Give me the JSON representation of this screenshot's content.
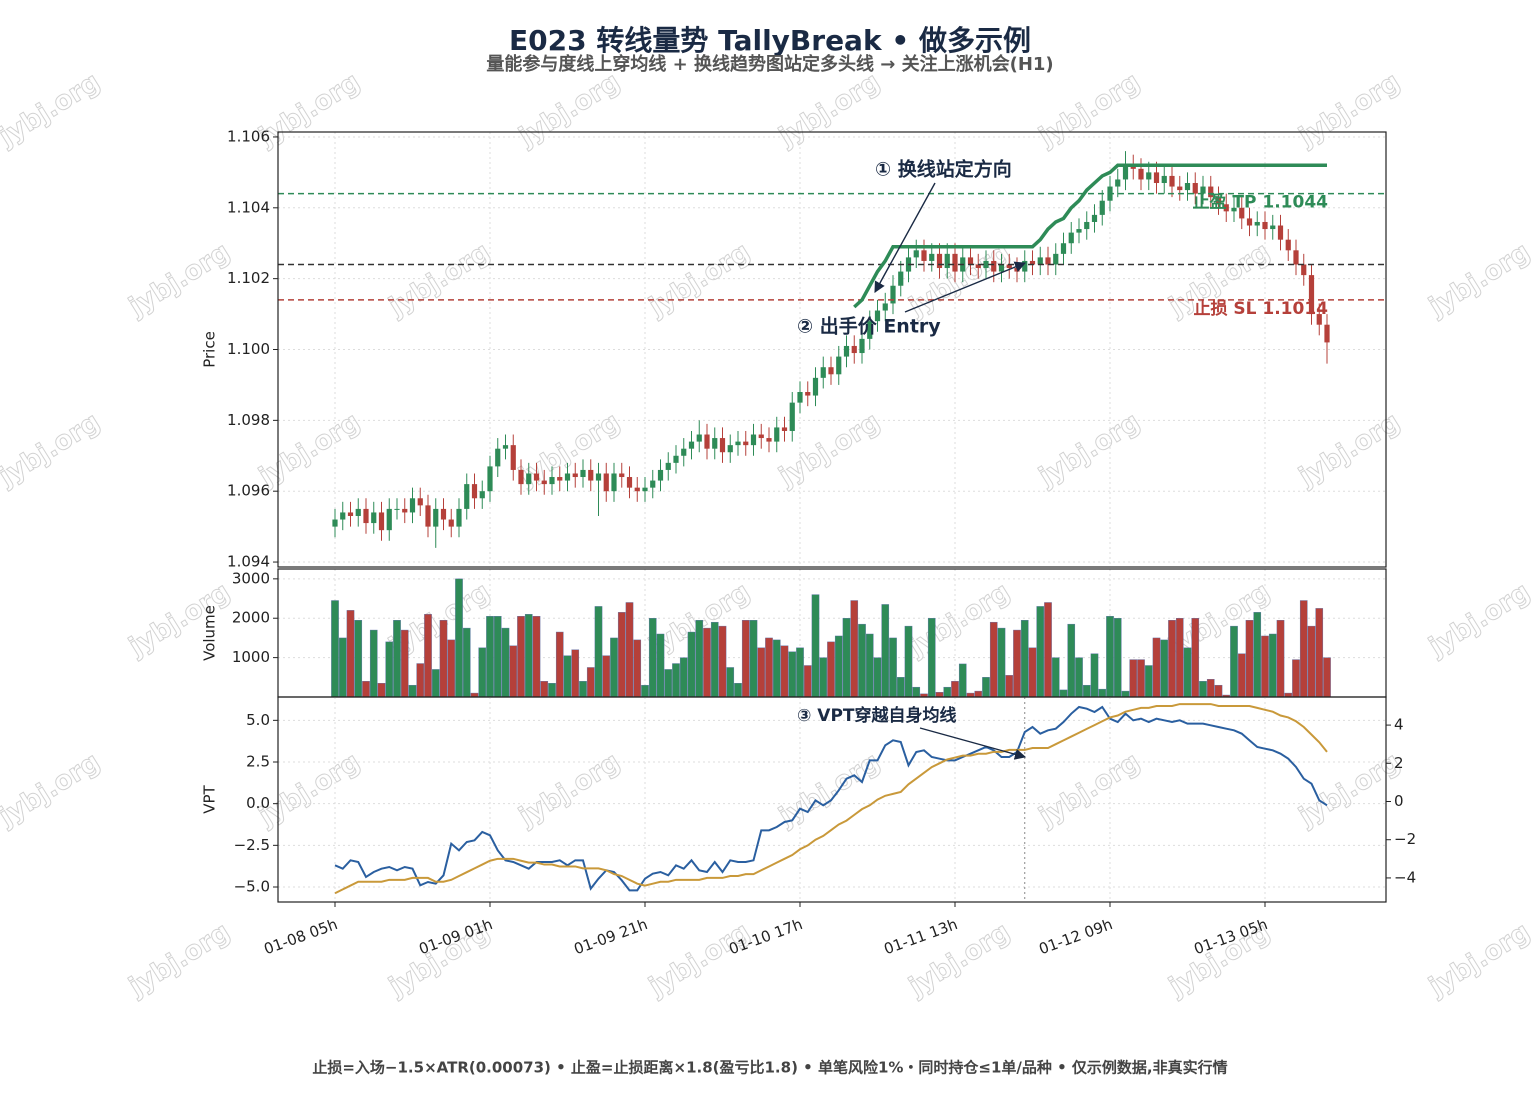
{
  "watermark": "jybj.org",
  "footer": "止损=入场−1.5×ATR(0.00073)  •  止盈=止损距离×1.8(盈亏比1.8)  •  单笔风险1%・同时持仓≤1单/品种  •  仅示例数据,非真实行情",
  "chart_data": [
    {
      "type": "candlestick",
      "title": "E023 转线量势 TallyBreak • 做多示例",
      "subtitle": "量能参与度线上穿均线 + 换线趋势图站定多头线 → 关注上涨机会(H1)",
      "ylabel": "Price",
      "grid": true,
      "up_color": "#2e8b57",
      "down_color": "#b5403a",
      "ylim": [
        1.09386,
        1.10614
      ],
      "yticks": [
        1.094,
        1.096,
        1.098,
        {
          "value": 1.1,
          "label": "1.100"
        },
        1.102,
        1.104,
        1.106
      ],
      "open": [
        1.095,
        1.0952,
        1.0954,
        1.0953,
        1.0955,
        1.0951,
        1.0954,
        1.0949,
        1.0955,
        1.0955,
        1.0954,
        1.0958,
        1.0956,
        1.095,
        1.0955,
        1.0952,
        1.095,
        1.0955,
        1.0962,
        1.0958,
        1.096,
        1.0967,
        1.0972,
        1.0973,
        1.0966,
        1.0962,
        1.0965,
        1.0963,
        1.0962,
        1.0964,
        1.0963,
        1.0965,
        1.0964,
        1.0966,
        1.0963,
        1.0965,
        1.096,
        1.0965,
        1.0964,
        1.0961,
        1.096,
        1.0961,
        1.0963,
        1.0966,
        1.0968,
        1.097,
        1.0972,
        1.0974,
        1.0976,
        1.0972,
        1.0975,
        1.0971,
        1.0973,
        1.0974,
        1.0973,
        1.0976,
        1.0975,
        1.0974,
        1.0978,
        1.0977,
        1.0985,
        1.0988,
        1.0987,
        1.0992,
        1.0995,
        1.0993,
        1.0998,
        1.1001,
        1.0999,
        1.1003,
        1.1008,
        1.1011,
        1.1013,
        1.1018,
        1.1022,
        1.1026,
        1.1028,
        1.1025,
        1.1027,
        1.1023,
        1.1027,
        1.1022,
        1.1026,
        1.1024,
        1.1023,
        1.1025,
        1.1022,
        1.1024,
        1.1023,
        1.1022,
        1.1025,
        1.1024,
        1.1026,
        1.1024,
        1.1027,
        1.103,
        1.1033,
        1.1034,
        1.1036,
        1.1038,
        1.1042,
        1.1046,
        1.1048,
        1.1052,
        1.1051,
        1.1048,
        1.105,
        1.1047,
        1.1049,
        1.1046,
        1.1045,
        1.1047,
        1.1044,
        1.1046,
        1.1043,
        1.1041,
        1.1039,
        1.104,
        1.1037,
        1.1035,
        1.1036,
        1.1034,
        1.1035,
        1.1031,
        1.1028,
        1.1024,
        1.1021,
        1.101,
        1.1007
      ],
      "high": [
        1.0955,
        1.0957,
        1.0957,
        1.0958,
        1.0958,
        1.0957,
        1.0957,
        1.0958,
        1.0958,
        1.0958,
        1.0961,
        1.0961,
        1.0959,
        1.0958,
        1.0958,
        1.0955,
        1.0958,
        1.0965,
        1.0965,
        1.0963,
        1.097,
        1.0975,
        1.0976,
        1.0976,
        1.0969,
        1.0968,
        1.0968,
        1.0966,
        1.0967,
        1.0967,
        1.0968,
        1.0968,
        1.0969,
        1.0969,
        1.0968,
        1.0968,
        1.0968,
        1.0968,
        1.0967,
        1.0964,
        1.0964,
        1.0966,
        1.0969,
        1.0971,
        1.0973,
        1.0975,
        1.0977,
        1.098,
        1.0979,
        1.0978,
        1.0978,
        1.0976,
        1.0977,
        1.0977,
        1.0979,
        1.0979,
        1.0978,
        1.0981,
        1.0981,
        1.0988,
        1.0991,
        1.0991,
        1.0995,
        1.0998,
        1.0998,
        1.1001,
        1.1004,
        1.1004,
        1.1006,
        1.1011,
        1.1014,
        1.1016,
        1.1021,
        1.1025,
        1.1029,
        1.1031,
        1.1031,
        1.103,
        1.103,
        1.103,
        1.103,
        1.1029,
        1.1029,
        1.1027,
        1.1028,
        1.1028,
        1.1027,
        1.1027,
        1.1026,
        1.1028,
        1.1028,
        1.1029,
        1.1029,
        1.103,
        1.1033,
        1.1036,
        1.1037,
        1.1039,
        1.1041,
        1.1045,
        1.1049,
        1.1051,
        1.1056,
        1.1055,
        1.1054,
        1.1053,
        1.1053,
        1.1052,
        1.1052,
        1.1049,
        1.105,
        1.105,
        1.1049,
        1.1049,
        1.1046,
        1.1044,
        1.1043,
        1.1043,
        1.104,
        1.1039,
        1.1039,
        1.1038,
        1.1038,
        1.1034,
        1.1031,
        1.1027,
        1.1024,
        1.1013,
        1.101
      ],
      "low": [
        1.0947,
        1.0949,
        1.095,
        1.095,
        1.0948,
        1.0948,
        1.0946,
        1.0946,
        1.0952,
        1.0951,
        1.0951,
        1.0953,
        1.0947,
        1.0944,
        1.0949,
        1.0947,
        1.0947,
        1.0952,
        1.0955,
        1.0955,
        1.0957,
        1.0964,
        1.0969,
        1.0963,
        1.0959,
        1.0959,
        1.096,
        1.0959,
        1.0959,
        1.096,
        1.096,
        1.0961,
        1.0961,
        1.096,
        1.0953,
        1.0957,
        1.0957,
        1.0961,
        1.0958,
        1.0957,
        1.0957,
        1.0958,
        1.096,
        1.0963,
        1.0965,
        1.0967,
        1.0969,
        1.0971,
        1.0969,
        1.0969,
        1.0968,
        1.0968,
        1.097,
        1.097,
        1.097,
        1.0972,
        1.0971,
        1.0971,
        1.0974,
        1.0974,
        1.0982,
        1.0984,
        1.0984,
        1.0989,
        1.099,
        1.099,
        1.0995,
        1.0996,
        1.0996,
        1.1,
        1.1005,
        1.1008,
        1.101,
        1.1015,
        1.1019,
        1.1023,
        1.1022,
        1.1022,
        1.102,
        1.102,
        1.1019,
        1.1019,
        1.1021,
        1.102,
        1.102,
        1.1019,
        1.1019,
        1.102,
        1.1019,
        1.1019,
        1.1021,
        1.1021,
        1.1021,
        1.1021,
        1.1024,
        1.1027,
        1.103,
        1.1031,
        1.1033,
        1.1035,
        1.1039,
        1.1043,
        1.1045,
        1.1048,
        1.1045,
        1.1045,
        1.1044,
        1.1044,
        1.1043,
        1.1042,
        1.1042,
        1.1041,
        1.1041,
        1.104,
        1.1038,
        1.1036,
        1.1036,
        1.1034,
        1.1032,
        1.1032,
        1.1031,
        1.1031,
        1.1028,
        1.1025,
        1.1021,
        1.1018,
        1.1007,
        1.1004,
        1.0996
      ],
      "close": [
        1.0952,
        1.0954,
        1.0953,
        1.0955,
        1.0951,
        1.0954,
        1.0949,
        1.0955,
        1.0955,
        1.0954,
        1.0958,
        1.0956,
        1.095,
        1.0955,
        1.0952,
        1.095,
        1.0955,
        1.0962,
        1.0958,
        1.096,
        1.0967,
        1.0972,
        1.0973,
        1.0966,
        1.0962,
        1.0965,
        1.0963,
        1.0962,
        1.0964,
        1.0963,
        1.0965,
        1.0964,
        1.0966,
        1.0963,
        1.0965,
        1.096,
        1.0965,
        1.0964,
        1.0961,
        1.096,
        1.0961,
        1.0963,
        1.0966,
        1.0968,
        1.097,
        1.0972,
        1.0974,
        1.0976,
        1.0972,
        1.0975,
        1.0971,
        1.0973,
        1.0974,
        1.0973,
        1.0976,
        1.0975,
        1.0974,
        1.0978,
        1.0977,
        1.0985,
        1.0988,
        1.0987,
        1.0992,
        1.0995,
        1.0993,
        1.0998,
        1.1001,
        1.0999,
        1.1003,
        1.1008,
        1.1011,
        1.1013,
        1.1018,
        1.1022,
        1.1026,
        1.1028,
        1.1025,
        1.1027,
        1.1023,
        1.1027,
        1.1022,
        1.1026,
        1.1024,
        1.1023,
        1.1025,
        1.1022,
        1.1024,
        1.1023,
        1.1022,
        1.1025,
        1.1024,
        1.1026,
        1.1024,
        1.1027,
        1.103,
        1.1033,
        1.1034,
        1.1036,
        1.1038,
        1.1042,
        1.1046,
        1.1048,
        1.1052,
        1.1051,
        1.1048,
        1.105,
        1.1047,
        1.1049,
        1.1046,
        1.1045,
        1.1047,
        1.1044,
        1.1046,
        1.1043,
        1.1041,
        1.1039,
        1.104,
        1.1037,
        1.1035,
        1.1036,
        1.1034,
        1.1035,
        1.1031,
        1.1028,
        1.1024,
        1.1021,
        1.101,
        1.1007,
        1.1002
      ],
      "trend_line": {
        "color": "#2e8b57",
        "values": [
          null,
          null,
          null,
          null,
          null,
          null,
          null,
          null,
          null,
          null,
          null,
          null,
          null,
          null,
          null,
          null,
          null,
          null,
          null,
          null,
          null,
          null,
          null,
          null,
          null,
          null,
          null,
          null,
          null,
          null,
          null,
          null,
          null,
          null,
          null,
          null,
          null,
          null,
          null,
          null,
          null,
          null,
          null,
          null,
          null,
          null,
          null,
          null,
          null,
          null,
          null,
          null,
          null,
          null,
          null,
          null,
          null,
          null,
          null,
          null,
          null,
          null,
          null,
          null,
          null,
          null,
          null,
          1.1012,
          1.1014,
          1.1018,
          1.1022,
          1.1025,
          1.1029,
          1.1029,
          1.1029,
          1.1029,
          1.1029,
          1.1029,
          1.1029,
          1.1029,
          1.1029,
          1.1029,
          1.1029,
          1.1029,
          1.1029,
          1.1029,
          1.1029,
          1.1029,
          1.1029,
          1.1029,
          1.1029,
          1.1031,
          1.1034,
          1.1036,
          1.1037,
          1.104,
          1.1042,
          1.1045,
          1.1047,
          1.1049,
          1.105,
          1.1052,
          1.1052,
          1.1052,
          1.1052,
          1.1052,
          1.1052,
          1.1052,
          1.1052,
          1.1052,
          1.1052,
          1.1052,
          1.1052,
          1.1052,
          1.1052,
          1.1052,
          1.1052,
          1.1052,
          1.1052,
          1.1052,
          1.1052,
          1.1052,
          1.1052,
          1.1052,
          1.1052,
          1.1052,
          1.1052,
          1.1052,
          1.1052
        ]
      },
      "levels": [
        {
          "label": "止盈 TP 1.1044",
          "value": 1.1044,
          "color": "#2e8b57"
        },
        {
          "value": 1.1024,
          "color": "#333333"
        },
        {
          "label": "止损 SL 1.1014",
          "value": 1.1014,
          "color": "#b5403a"
        }
      ],
      "annotations": [
        "① 换线站定方向",
        "② 出手价 Entry"
      ]
    },
    {
      "type": "bar",
      "ylabel": "Volume",
      "grid": true,
      "ylim": [
        0,
        3250
      ],
      "yticks": [
        1000,
        2000,
        3000
      ],
      "values": [
        2450,
        1500,
        2200,
        1950,
        400,
        1700,
        350,
        1400,
        1950,
        1700,
        300,
        850,
        2100,
        700,
        1950,
        1450,
        3000,
        1750,
        100,
        1250,
        2050,
        2050,
        1750,
        1300,
        2050,
        2100,
        2050,
        400,
        350,
        1650,
        1050,
        1200,
        400,
        750,
        2300,
        1050,
        1500,
        2150,
        2400,
        1450,
        300,
        2000,
        1600,
        700,
        850,
        1000,
        1650,
        1950,
        1750,
        1900,
        1800,
        750,
        350,
        1950,
        1950,
        1250,
        1500,
        1450,
        1300,
        1150,
        1250,
        800,
        2600,
        1000,
        1400,
        1550,
        2000,
        2450,
        1850,
        1600,
        1000,
        2350,
        1500,
        500,
        1800,
        250,
        80,
        2000,
        120,
        250,
        400,
        840,
        100,
        150,
        500,
        1900,
        1750,
        550,
        1700,
        1950,
        1250,
        2300,
        2400,
        1000,
        180,
        1850,
        1000,
        300,
        1100,
        200,
        2050,
        2000,
        150,
        950,
        950,
        800,
        1500,
        1450,
        1950,
        2000,
        1250,
        2000,
        400,
        450,
        300,
        50,
        1800,
        1100,
        1950,
        2150,
        1550,
        1600,
        1950,
        100,
        950,
        2450,
        1800,
        2250,
        1000
      ]
    },
    {
      "type": "line",
      "ylabel": "VPT",
      "grid": true,
      "ylim": [
        -5.9,
        6.4
      ],
      "yticks": [
        {
          "value": -5,
          "label": "−5.0"
        },
        {
          "value": -2.5,
          "label": "−2.5"
        },
        {
          "value": 0,
          "label": "0.0"
        },
        {
          "value": 2.5,
          "label": "2.5"
        },
        {
          "value": 5,
          "label": "5.0"
        }
      ],
      "y2lim": [
        -5.26,
        5.47
      ],
      "y2ticks": [
        {
          "value": -4,
          "label": "−4"
        },
        {
          "value": -2,
          "label": "−2"
        },
        0,
        2,
        4
      ],
      "xticks": [
        {
          "value": 0,
          "label": "01-08 05h"
        },
        {
          "value": 20,
          "label": "01-09 01h"
        },
        {
          "value": 40,
          "label": "01-09 21h"
        },
        {
          "value": 60,
          "label": "01-10 17h"
        },
        {
          "value": 80,
          "label": "01-11 13h"
        },
        {
          "value": 100,
          "label": "01-12 09h"
        },
        {
          "value": 120,
          "label": "01-13 05h"
        }
      ],
      "vline": 89,
      "annotation": "③ VPT穿越自身均线",
      "series": [
        {
          "color": "#2a5fa0",
          "values": [
            -3.7,
            -3.9,
            -3.4,
            -3.5,
            -4.4,
            -4.1,
            -3.9,
            -3.8,
            -4.0,
            -3.8,
            -3.9,
            -4.9,
            -4.7,
            -4.8,
            -4.3,
            -2.4,
            -2.8,
            -2.3,
            -2.2,
            -1.7,
            -1.9,
            -2.8,
            -3.4,
            -3.5,
            -3.7,
            -3.9,
            -3.5,
            -3.5,
            -3.5,
            -3.4,
            -3.7,
            -3.4,
            -3.4,
            -5.1,
            -4.5,
            -4.0,
            -4.1,
            -4.6,
            -5.2,
            -5.2,
            -4.5,
            -4.2,
            -4.1,
            -4.3,
            -3.7,
            -3.9,
            -3.4,
            -4.0,
            -4.1,
            -3.5,
            -4.1,
            -3.4,
            -3.5,
            -3.5,
            -3.4,
            -1.6,
            -1.6,
            -1.4,
            -1.1,
            -1.0,
            -0.3,
            -0.5,
            0.2,
            -0.1,
            0.2,
            0.8,
            1.5,
            1.7,
            1.3,
            2.6,
            2.6,
            3.5,
            3.8,
            3.7,
            2.3,
            3.1,
            3.2,
            2.8,
            2.7,
            2.6,
            2.6,
            2.8,
            3.0,
            3.2,
            3.4,
            3.2,
            2.8,
            2.8,
            3.1,
            4.3,
            4.6,
            4.2,
            4.4,
            4.5,
            4.9,
            5.4,
            5.8,
            5.7,
            5.5,
            5.8,
            5.1,
            4.9,
            5.4,
            5.0,
            5.1,
            4.9,
            5.1,
            5.0,
            4.9,
            5.0,
            4.8,
            4.8,
            4.8,
            4.7,
            4.6,
            4.5,
            4.4,
            4.2,
            3.8,
            3.4,
            3.3,
            3.2,
            3.0,
            2.7,
            2.2,
            1.5,
            1.2,
            0.2,
            -0.1
          ]
        },
        {
          "color": "#c9993a",
          "axis": "y2",
          "values": [
            -4.8,
            -4.6,
            -4.4,
            -4.2,
            -4.2,
            -4.2,
            -4.2,
            -4.1,
            -4.1,
            -4.1,
            -4.0,
            -4.0,
            -4.0,
            -4.2,
            -4.2,
            -4.1,
            -3.9,
            -3.7,
            -3.5,
            -3.3,
            -3.1,
            -3.0,
            -3.0,
            -3.0,
            -3.1,
            -3.2,
            -3.2,
            -3.3,
            -3.3,
            -3.4,
            -3.4,
            -3.4,
            -3.5,
            -3.5,
            -3.5,
            -3.6,
            -3.8,
            -3.9,
            -4.1,
            -4.3,
            -4.4,
            -4.3,
            -4.2,
            -4.2,
            -4.1,
            -4.1,
            -4.1,
            -4.1,
            -4.0,
            -4.0,
            -4.0,
            -3.9,
            -3.9,
            -3.8,
            -3.8,
            -3.6,
            -3.4,
            -3.2,
            -3.0,
            -2.8,
            -2.5,
            -2.3,
            -2.0,
            -1.8,
            -1.5,
            -1.2,
            -1.0,
            -0.7,
            -0.4,
            -0.2,
            0.1,
            0.3,
            0.4,
            0.5,
            0.9,
            1.2,
            1.5,
            1.8,
            2.0,
            2.2,
            2.3,
            2.4,
            2.4,
            2.5,
            2.5,
            2.6,
            2.6,
            2.7,
            2.7,
            2.7,
            2.8,
            2.8,
            2.8,
            3.0,
            3.2,
            3.4,
            3.6,
            3.8,
            4.0,
            4.2,
            4.4,
            4.5,
            4.7,
            4.8,
            4.9,
            4.9,
            5.0,
            5.0,
            5.0,
            5.1,
            5.1,
            5.1,
            5.1,
            5.1,
            5.0,
            5.0,
            5.0,
            5.0,
            5.0,
            4.9,
            4.8,
            4.7,
            4.5,
            4.4,
            4.2,
            3.9,
            3.5,
            3.1,
            2.6
          ]
        }
      ]
    }
  ]
}
